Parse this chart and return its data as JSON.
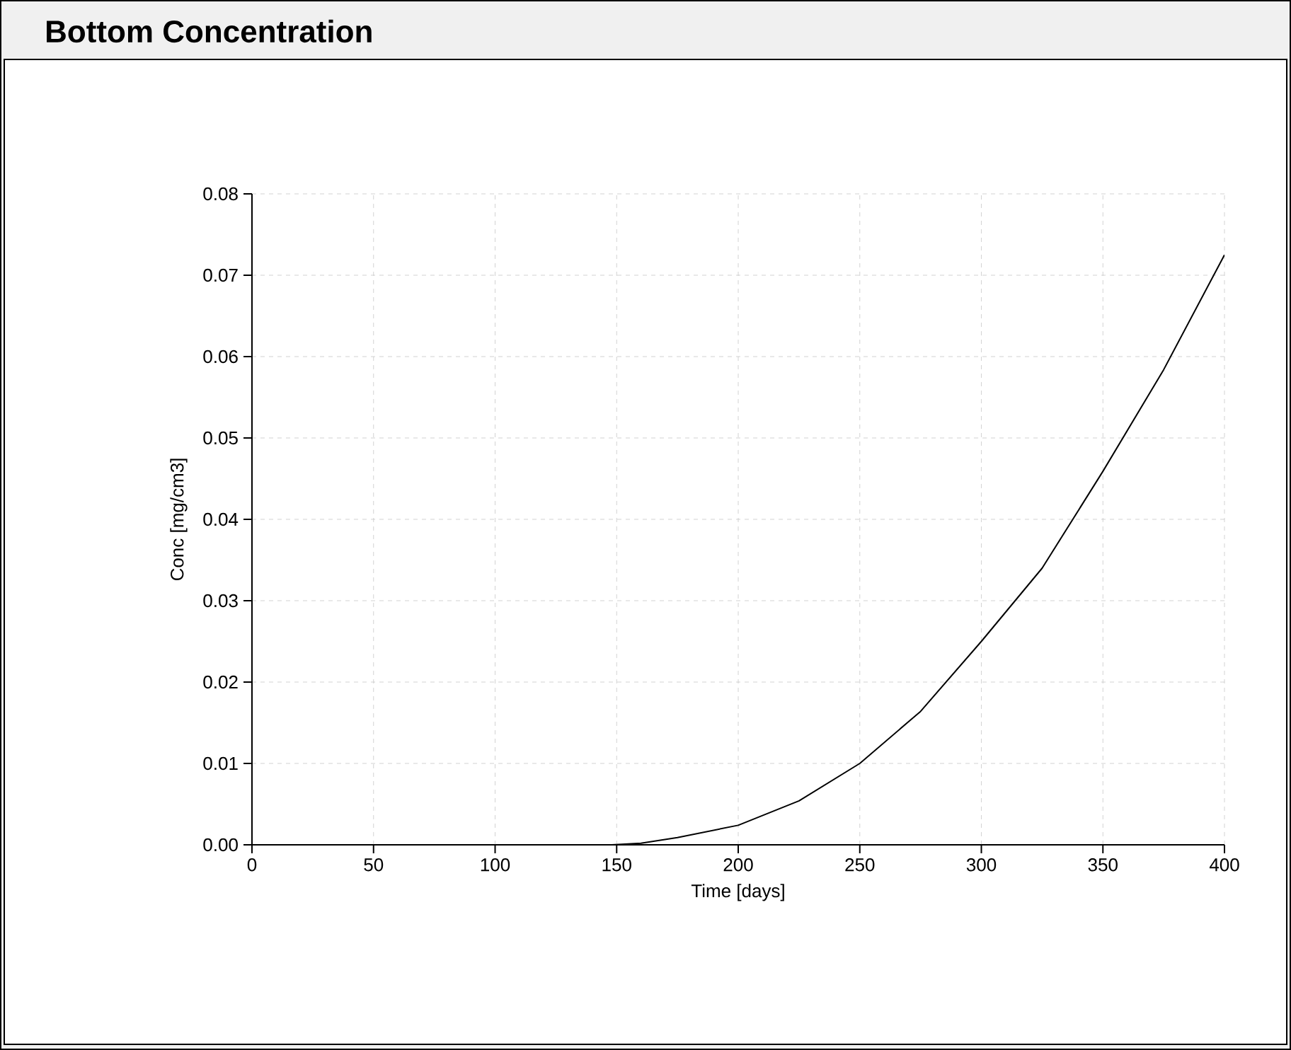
{
  "chart_data": {
    "type": "line",
    "title": "Bottom Concentration",
    "xlabel": "Time [days]",
    "ylabel": "Conc [mg/cm3]",
    "x": [
      148,
      160,
      175,
      200,
      225,
      250,
      275,
      300,
      325,
      350,
      375,
      400
    ],
    "series": [
      {
        "color": "#000000",
        "values": [
          0,
          0.0002,
          0.0009,
          0.0024,
          0.0054,
          0.01,
          0.0164,
          0.025,
          0.034,
          0.0459,
          0.0584,
          0.0725
        ]
      }
    ],
    "xlim": [
      0,
      400
    ],
    "ylim": [
      0,
      0.08
    ],
    "xticks": [
      0,
      50,
      100,
      150,
      200,
      250,
      300,
      350,
      400
    ],
    "yticks": [
      {
        "value": 0,
        "label": "0.00"
      },
      {
        "value": 0.01,
        "label": "0.01"
      },
      {
        "value": 0.02,
        "label": "0.02"
      },
      {
        "value": 0.03,
        "label": "0.03"
      },
      {
        "value": 0.04,
        "label": "0.04"
      },
      {
        "value": 0.05,
        "label": "0.05"
      },
      {
        "value": 0.06,
        "label": "0.06"
      },
      {
        "value": 0.07,
        "label": "0.07"
      },
      {
        "value": 0.08,
        "label": "0.08"
      }
    ],
    "grid": true,
    "marker": "none",
    "line_style": "solid"
  }
}
